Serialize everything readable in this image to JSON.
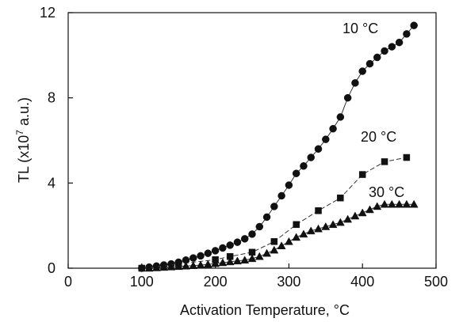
{
  "chart_data": {
    "type": "scatter",
    "xlabel": "Activation Temperature, °C",
    "ylabel_parts": {
      "prefix": "TL (x10",
      "superscript": "7",
      "suffix": " a.u.)"
    },
    "xlim": [
      0,
      500
    ],
    "ylim": [
      0,
      12
    ],
    "xticks": [
      0,
      100,
      200,
      300,
      400,
      500
    ],
    "yticks": [
      0,
      4,
      8,
      12
    ],
    "grid": false,
    "series": [
      {
        "name": "10 °C",
        "marker": "circle",
        "line": "solid",
        "x": [
          100,
          110,
          120,
          130,
          140,
          150,
          160,
          170,
          180,
          190,
          200,
          210,
          220,
          230,
          240,
          250,
          260,
          270,
          280,
          290,
          300,
          310,
          320,
          330,
          340,
          350,
          360,
          370,
          380,
          390,
          400,
          410,
          420,
          430,
          440,
          450,
          460,
          470
        ],
        "y": [
          0.0,
          0.05,
          0.1,
          0.15,
          0.2,
          0.28,
          0.38,
          0.48,
          0.58,
          0.7,
          0.82,
          0.95,
          1.08,
          1.22,
          1.38,
          1.6,
          1.95,
          2.4,
          2.9,
          3.4,
          3.9,
          4.45,
          4.8,
          5.2,
          5.6,
          6.05,
          6.55,
          7.1,
          8.0,
          8.7,
          9.25,
          9.6,
          9.9,
          10.2,
          10.4,
          10.6,
          11.0,
          11.4
        ]
      },
      {
        "name": "20 °C",
        "marker": "square",
        "line": "dashed",
        "x": [
          100,
          150,
          200,
          220,
          250,
          280,
          310,
          340,
          370,
          400,
          430,
          460
        ],
        "y": [
          0.0,
          0.2,
          0.4,
          0.55,
          0.75,
          1.25,
          2.05,
          2.7,
          3.3,
          4.4,
          5.0,
          5.2
        ]
      },
      {
        "name": "30 °C",
        "marker": "triangle",
        "line": "solid",
        "x": [
          110,
          120,
          130,
          140,
          150,
          160,
          170,
          180,
          190,
          200,
          210,
          220,
          230,
          240,
          250,
          260,
          270,
          280,
          290,
          300,
          310,
          320,
          330,
          340,
          350,
          360,
          370,
          380,
          390,
          400,
          410,
          420,
          430,
          440,
          450,
          460,
          470
        ],
        "y": [
          0.0,
          0.02,
          0.04,
          0.06,
          0.08,
          0.1,
          0.12,
          0.15,
          0.18,
          0.22,
          0.26,
          0.3,
          0.34,
          0.38,
          0.45,
          0.55,
          0.7,
          0.85,
          1.05,
          1.25,
          1.45,
          1.6,
          1.75,
          1.85,
          1.95,
          2.05,
          2.15,
          2.3,
          2.45,
          2.6,
          2.75,
          2.9,
          3.0,
          3.0,
          3.0,
          3.0,
          3.0
        ]
      }
    ]
  }
}
